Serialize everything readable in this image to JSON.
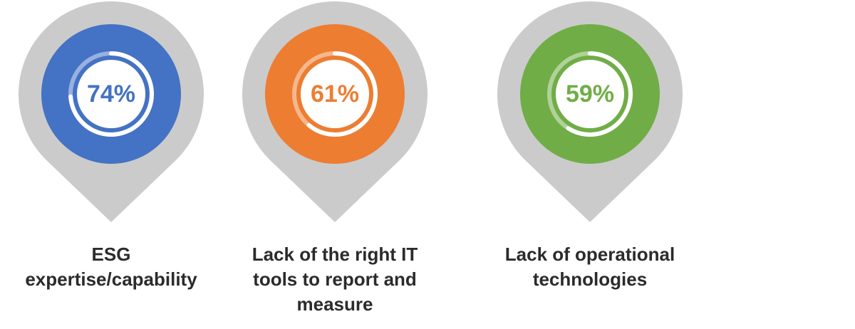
{
  "chart_data": {
    "type": "gauge",
    "categories": [
      "ESG expertise/capability",
      "Lack of the right IT tools to report and measure",
      "Lack of operational technologies"
    ],
    "values": [
      74,
      61,
      59
    ],
    "value_labels": [
      "74%",
      "61%",
      "59%"
    ],
    "colors": [
      "#4472c4",
      "#ed7d31",
      "#70ad47"
    ]
  }
}
